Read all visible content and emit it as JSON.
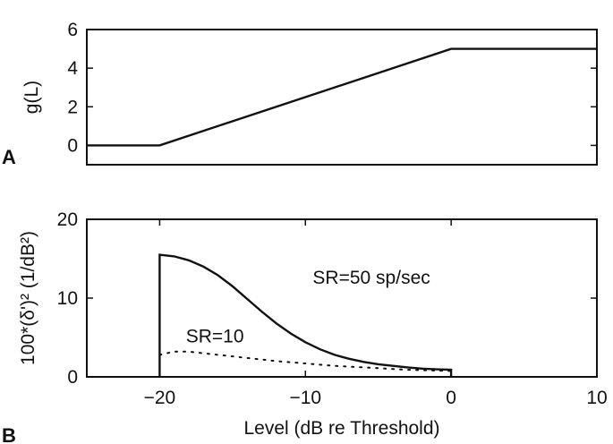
{
  "chart_data": [
    {
      "type": "line",
      "panel_label": "A",
      "ylabel": "g(L)",
      "xlabel": "",
      "xlim": [
        -25,
        10
      ],
      "ylim": [
        -1,
        6
      ],
      "xticks": [],
      "yticks": [
        0,
        2,
        4,
        6
      ],
      "series": [
        {
          "style": "solid",
          "x": [
            -25,
            -20,
            0,
            10
          ],
          "y": [
            0,
            0,
            5,
            5
          ]
        }
      ],
      "annotations": []
    },
    {
      "type": "line",
      "panel_label": "B",
      "ylabel": "100*(δ')² (1/dB²)",
      "xlabel": "Level (dB re Threshold)",
      "xlim": [
        -25,
        10
      ],
      "ylim": [
        0,
        20
      ],
      "xticks": [
        -20,
        -10,
        0,
        10
      ],
      "xtick_labels": [
        "−20",
        "−10",
        "0",
        "10"
      ],
      "yticks": [
        0,
        10,
        20
      ],
      "series": [
        {
          "name": "SR=50 sp/sec",
          "style": "solid",
          "x": [
            -20,
            -20,
            -19,
            -18,
            -17,
            -16,
            -15,
            -14,
            -13,
            -12,
            -11,
            -10,
            -9,
            -8,
            -7,
            -6,
            -5,
            -4,
            -3,
            -2,
            -1,
            0,
            0
          ],
          "y": [
            0,
            15.5,
            15.3,
            14.8,
            14.0,
            12.9,
            11.5,
            9.9,
            8.3,
            6.8,
            5.5,
            4.4,
            3.5,
            2.8,
            2.3,
            1.9,
            1.6,
            1.4,
            1.2,
            1.05,
            0.95,
            0.9,
            0
          ]
        },
        {
          "name": "SR=10",
          "style": "dotted",
          "x": [
            -20,
            -19,
            -18,
            -17,
            -16,
            -15,
            -14,
            -13,
            -12,
            -11,
            -10,
            -9,
            -8,
            -7,
            -6,
            -5,
            -4,
            -3,
            -2,
            -1,
            0
          ],
          "y": [
            2.8,
            3.2,
            3.2,
            3.0,
            2.8,
            2.6,
            2.4,
            2.2,
            2.0,
            1.85,
            1.7,
            1.55,
            1.4,
            1.3,
            1.2,
            1.1,
            1.0,
            0.9,
            0.85,
            0.8,
            0.75
          ]
        }
      ],
      "annotations": [
        {
          "text": "SR=50 sp/sec",
          "x": -9.5,
          "y": 11.8
        },
        {
          "text": "SR=10",
          "x": -18.2,
          "y": 4.4
        }
      ]
    }
  ]
}
